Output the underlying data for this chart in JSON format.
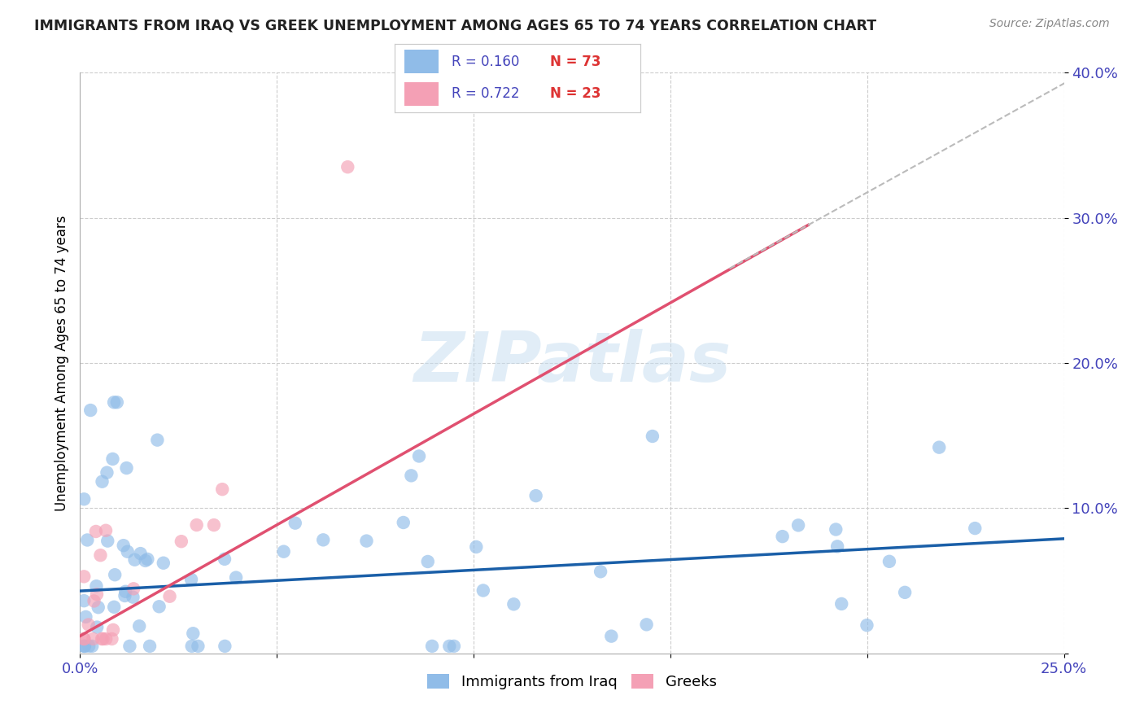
{
  "title": "IMMIGRANTS FROM IRAQ VS GREEK UNEMPLOYMENT AMONG AGES 65 TO 74 YEARS CORRELATION CHART",
  "source": "Source: ZipAtlas.com",
  "ylabel": "Unemployment Among Ages 65 to 74 years",
  "xlim": [
    0.0,
    0.25
  ],
  "ylim": [
    0.0,
    0.4
  ],
  "blue_color": "#90bce8",
  "pink_color": "#f4a0b5",
  "blue_line_color": "#1a5fa8",
  "pink_line_color": "#e05070",
  "dash_color": "#bbbbbb",
  "legend_R_blue": "R = 0.160",
  "legend_N_blue": "N = 73",
  "legend_R_pink": "R = 0.722",
  "legend_N_pink": "N = 23",
  "blue_label": "Immigrants from Iraq",
  "pink_label": "Greeks",
  "watermark": "ZIPatlas",
  "title_color": "#222222",
  "source_color": "#888888",
  "tick_color": "#4444bb",
  "grid_color": "#cccccc",
  "spine_color": "#aaaaaa",
  "legend_R_color": "#4444bb",
  "legend_N_color": "#dd3333"
}
